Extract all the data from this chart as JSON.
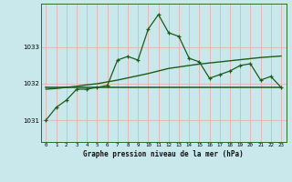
{
  "title": "Graphe pression niveau de la mer (hPa)",
  "bg_color": "#c8e8ec",
  "grid_color": "#e8b0b0",
  "line_color": "#1a5c1a",
  "x_labels": [
    "0",
    "1",
    "2",
    "3",
    "4",
    "5",
    "6",
    "7",
    "8",
    "9",
    "10",
    "11",
    "12",
    "13",
    "14",
    "15",
    "16",
    "17",
    "18",
    "19",
    "20",
    "21",
    "22",
    "23"
  ],
  "y_ticks": [
    1031,
    1032,
    1033
  ],
  "ylim": [
    1030.4,
    1034.2
  ],
  "xlim": [
    -0.5,
    23.5
  ],
  "series1": [
    1031.0,
    1031.35,
    1031.55,
    1031.85,
    1031.85,
    1031.9,
    1031.95,
    1032.65,
    1032.75,
    1032.65,
    1033.5,
    1033.9,
    1033.4,
    1033.3,
    1032.7,
    1032.6,
    1032.15,
    1032.25,
    1032.35,
    1032.5,
    1032.55,
    1032.1,
    1032.2,
    1031.9
  ],
  "series2": [
    1031.85,
    1031.87,
    1031.9,
    1031.93,
    1031.97,
    1032.0,
    1032.05,
    1032.1,
    1032.16,
    1032.22,
    1032.28,
    1032.35,
    1032.42,
    1032.46,
    1032.5,
    1032.54,
    1032.57,
    1032.6,
    1032.63,
    1032.66,
    1032.69,
    1032.72,
    1032.74,
    1032.76
  ],
  "series3_y": 1031.9,
  "series3_x_start": 0,
  "series3_x_end": 23
}
